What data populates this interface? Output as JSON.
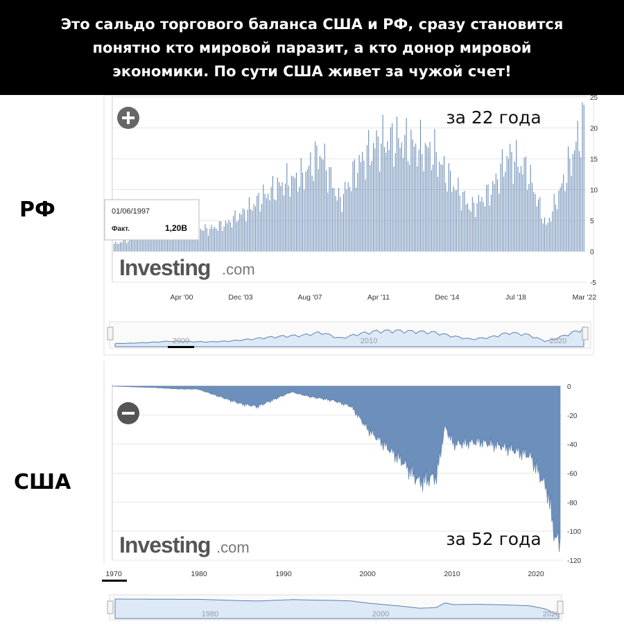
{
  "banner": {
    "line1": "Это сальдо торгового баланса США и РФ, сразу становится",
    "line2": "понятно кто мировой паразит, а кто донор мировой",
    "line3": "экономики. По сути США живет за чужой счет!"
  },
  "labels": {
    "rf": "РФ",
    "usa": "США"
  },
  "colors": {
    "bar": "#5b7fad",
    "fill": "#6d8fbb",
    "nav_fill": "#dde9f7",
    "nav_line": "#5b7fad",
    "grid": "#e6e6e6"
  },
  "icons": {
    "plus": "plus-circle-icon",
    "minus": "minus-circle-icon"
  },
  "chart_data": [
    {
      "type": "bar",
      "title": "",
      "x_tick_labels": [
        "Apr '00",
        "Dec '03",
        "Aug '07",
        "Apr '11",
        "Dec '14",
        "Jul '18",
        "Mar '22"
      ],
      "y_tick_labels": [
        "25",
        "20",
        "15",
        "10",
        "5",
        "0",
        "-5"
      ],
      "ylim": [
        -5,
        25
      ],
      "x": [
        "1997",
        "1998",
        "1999",
        "2000",
        "2001",
        "2002",
        "2003",
        "2004",
        "2005",
        "2006",
        "2007",
        "2008",
        "2009",
        "2010",
        "2011",
        "2012",
        "2013",
        "2014",
        "2015",
        "2016",
        "2017",
        "2018",
        "2019",
        "2020",
        "2021",
        "2022"
      ],
      "values": [
        1.2,
        2.0,
        3.0,
        4.5,
        4.0,
        3.5,
        4.5,
        6.5,
        9.0,
        11.0,
        12.0,
        16.0,
        8.0,
        14.0,
        17.5,
        18.0,
        17.0,
        16.0,
        11.0,
        7.0,
        9.5,
        15.5,
        13.0,
        4.0,
        12.0,
        21.0
      ],
      "annotation": "за 22 года",
      "tooltip": {
        "date": "01/06/1997",
        "label": "Факт.",
        "value": "1,20B"
      },
      "brand": {
        "name": "Investing",
        "suffix": ".com"
      },
      "navigator_labels": [
        "2000",
        "2010",
        "2020"
      ],
      "grid": true
    },
    {
      "type": "area",
      "title": "",
      "x_tick_labels": [
        "1970",
        "1980",
        "1990",
        "2000",
        "2010",
        "2020"
      ],
      "y_tick_labels": [
        "0",
        "-20",
        "-40",
        "-60",
        "-80",
        "-100",
        "-120"
      ],
      "ylim": [
        -120,
        0
      ],
      "x": [
        1970,
        1975,
        1978,
        1980,
        1983,
        1985,
        1987,
        1989,
        1991,
        1993,
        1996,
        1998,
        2000,
        2004,
        2006,
        2008,
        2009,
        2010,
        2013,
        2016,
        2019,
        2020,
        2021,
        2022
      ],
      "values": [
        0,
        -1,
        -2,
        -2,
        -8,
        -12,
        -14,
        -9,
        -4,
        -7,
        -10,
        -14,
        -30,
        -52,
        -66,
        -62,
        -28,
        -40,
        -38,
        -42,
        -48,
        -60,
        -72,
        -107
      ],
      "annotation": "за 52 года",
      "brand": {
        "name": "Investing",
        "suffix": ".com"
      },
      "navigator_labels": [
        "1980",
        "2000",
        "2020"
      ],
      "grid": true
    }
  ]
}
